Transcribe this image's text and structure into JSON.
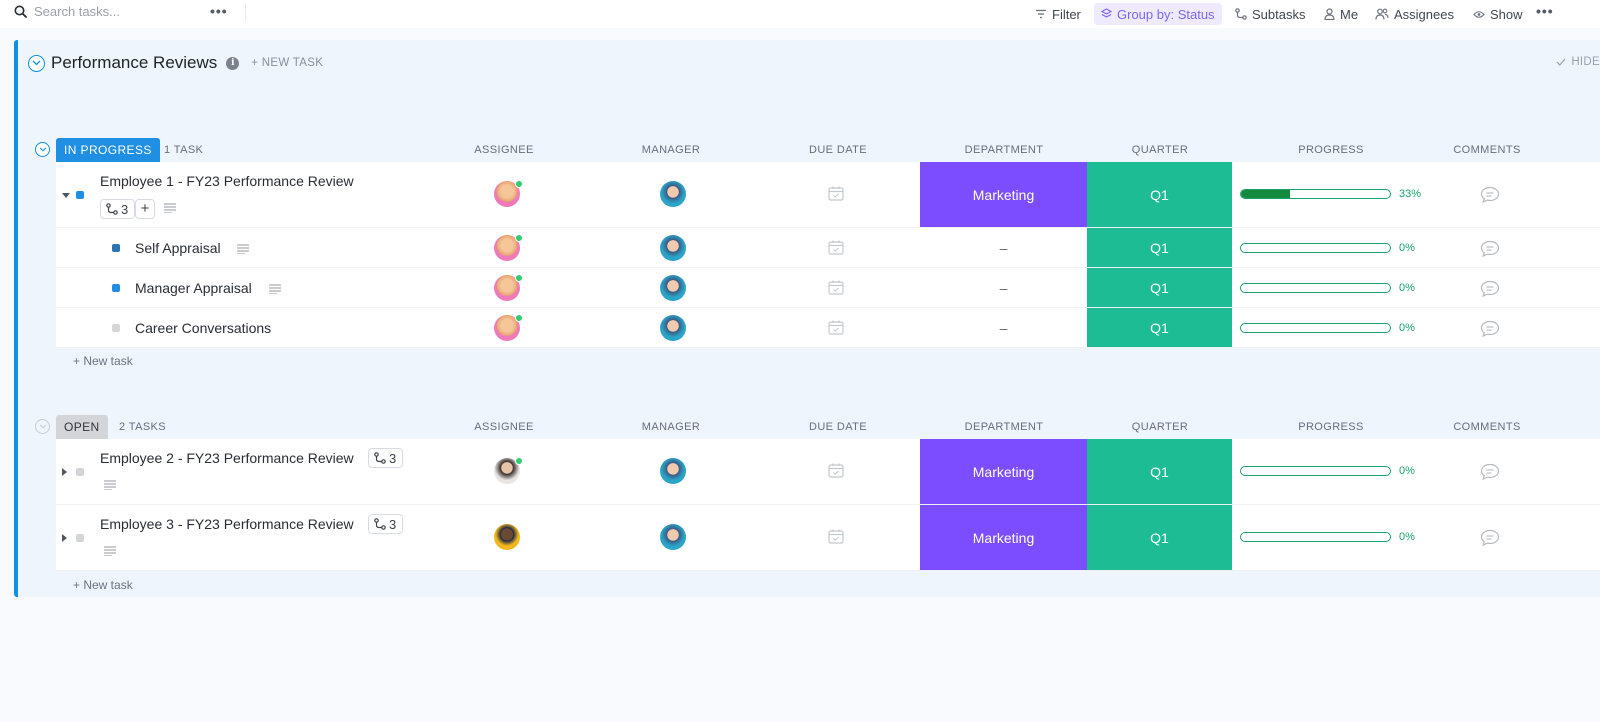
{
  "toolbar": {
    "search_placeholder": "Search tasks...",
    "more_label": "•••",
    "filter_label": "Filter",
    "group_by_label": "Group by: Status",
    "subtasks_label": "Subtasks",
    "me_label": "Me",
    "assignees_label": "Assignees",
    "show_label": "Show",
    "overflow_label": "•••"
  },
  "list": {
    "title": "Performance Reviews",
    "info_label": "i",
    "new_task_label": "+ NEW TASK",
    "hide_label": "HIDE"
  },
  "columns": {
    "assignee": "ASSIGNEE",
    "manager": "MANAGER",
    "due_date": "DUE DATE",
    "department": "DEPARTMENT",
    "quarter": "QUARTER",
    "progress": "PROGRESS",
    "comments": "COMMENTS"
  },
  "groups": [
    {
      "status": "IN PROGRESS",
      "count": "1 TASK",
      "color": "#1f8fe3",
      "new_task_label": "+ New task",
      "rows": [
        {
          "name": "Employee 1 - FY23 Performance Review",
          "subtask_count": "3",
          "add_label": "+",
          "department": "Marketing",
          "quarter": "Q1",
          "progress": 33,
          "progress_label": "33%"
        },
        {
          "name": "Self Appraisal",
          "department": "–",
          "quarter": "Q1",
          "progress": 0,
          "progress_label": "0%"
        },
        {
          "name": "Manager Appraisal",
          "department": "–",
          "quarter": "Q1",
          "progress": 0,
          "progress_label": "0%"
        },
        {
          "name": "Career Conversations",
          "department": "–",
          "quarter": "Q1",
          "progress": 0,
          "progress_label": "0%"
        }
      ]
    },
    {
      "status": "OPEN",
      "count": "2 TASKS",
      "color": "#d3d5d9",
      "new_task_label": "+ New task",
      "rows": [
        {
          "name": "Employee 2 - FY23 Performance Review",
          "subtask_count": "3",
          "department": "Marketing",
          "quarter": "Q1",
          "progress": 0,
          "progress_label": "0%"
        },
        {
          "name": "Employee 3 - FY23 Performance Review",
          "subtask_count": "3",
          "department": "Marketing",
          "quarter": "Q1",
          "progress": 0,
          "progress_label": "0%"
        }
      ]
    }
  ],
  "colors": {
    "accent": "#1090e0",
    "department_marketing": "#7c4dff",
    "quarter": "#1dbc95",
    "progress": "#138a3e"
  }
}
